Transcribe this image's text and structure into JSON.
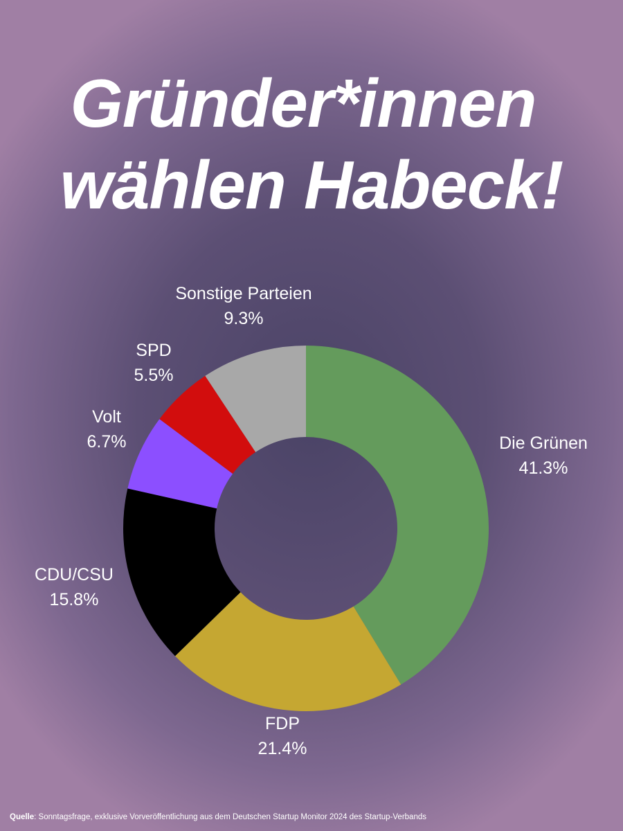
{
  "headline": {
    "line1": "Gründer*innen",
    "line2": "wählen Habeck!"
  },
  "chart_data": {
    "type": "pie",
    "variant": "donut",
    "title": "",
    "unit": "%",
    "start_angle_deg": 0,
    "direction": "clockwise",
    "slices": [
      {
        "label": "Die Grünen",
        "value": 41.3,
        "display": "41.3%",
        "color": "#649b5c"
      },
      {
        "label": "FDP",
        "value": 21.4,
        "display": "21.4%",
        "color": "#c5a732"
      },
      {
        "label": "CDU/CSU",
        "value": 15.8,
        "display": "15.8%",
        "color": "#000000"
      },
      {
        "label": "Volt",
        "value": 6.7,
        "display": "6.7%",
        "color": "#8c4fff"
      },
      {
        "label": "SPD",
        "value": 5.5,
        "display": "5.5%",
        "color": "#d20d0d"
      },
      {
        "label": "Sonstige Parteien",
        "value": 9.3,
        "display": "9.3%",
        "color": "#a8a8a8"
      }
    ],
    "legend": "none"
  },
  "footer": {
    "source_label": "Quelle",
    "source_text": ": Sonntagsfrage, exklusive Vorveröffentlichung aus dem Deutschen Startup Monitor 2024 des Startup-Verbands"
  }
}
